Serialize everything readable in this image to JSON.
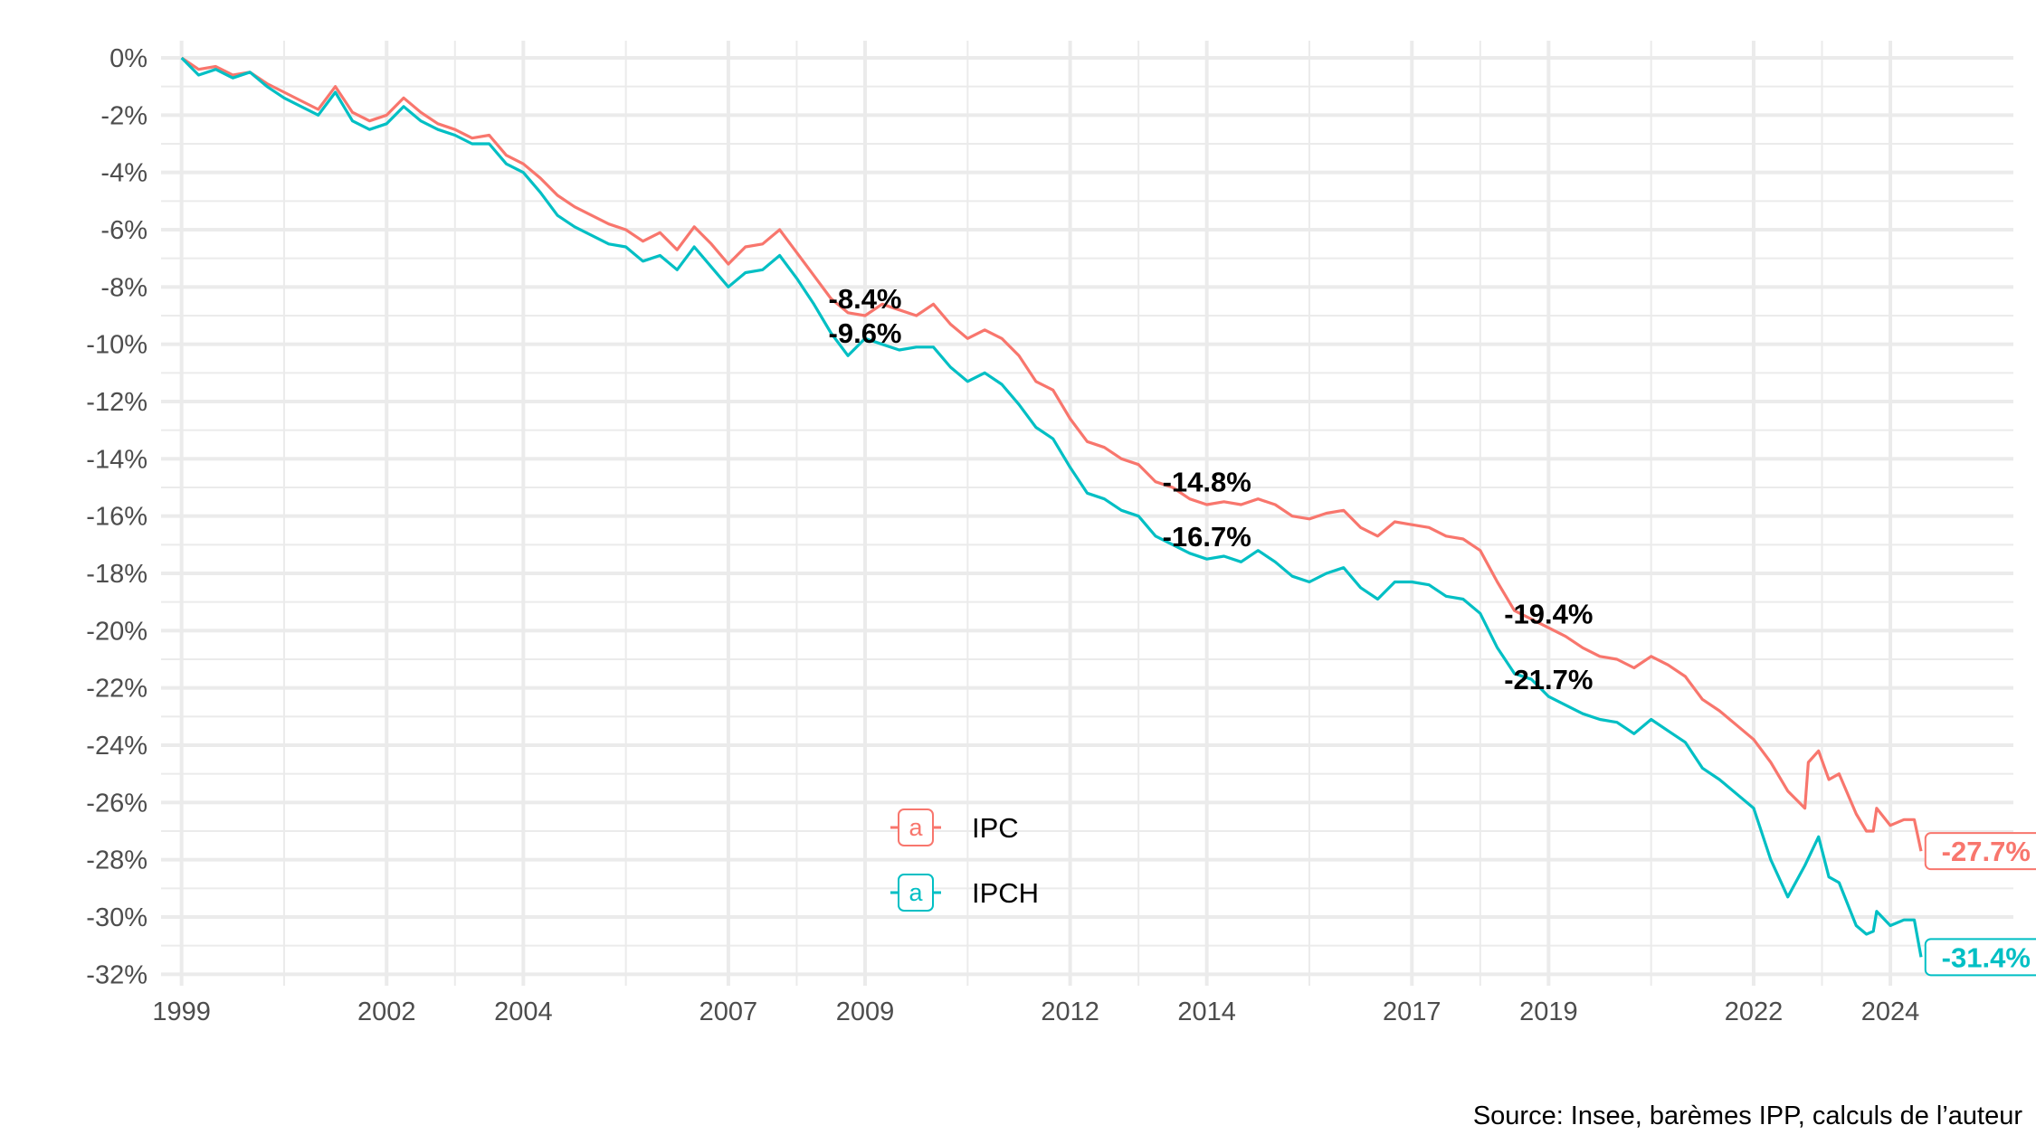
{
  "chart_data": {
    "type": "line",
    "title": "",
    "xlabel": "",
    "ylabel": "",
    "caption": "Source: Insee, barèmes IPP, calculs de l’auteur",
    "xlim": [
      1998.7,
      2025.8
    ],
    "ylim": [
      -32.4,
      0.6
    ],
    "x_ticks": [
      1999,
      2002,
      2004,
      2007,
      2009,
      2012,
      2014,
      2017,
      2019,
      2022,
      2024
    ],
    "y_ticks": [
      0,
      -2,
      -4,
      -6,
      -8,
      -10,
      -12,
      -14,
      -16,
      -18,
      -20,
      -22,
      -24,
      -26,
      -28,
      -30,
      -32
    ],
    "y_tick_labels": [
      "0%",
      "-2%",
      "-4%",
      "-6%",
      "-8%",
      "-10%",
      "-12%",
      "-14%",
      "-16%",
      "-18%",
      "-20%",
      "-22%",
      "-24%",
      "-26%",
      "-28%",
      "-30%",
      "-32%"
    ],
    "grid": true,
    "legend": {
      "position": "bottom-center",
      "key_glyph": "a"
    },
    "colors": {
      "IPC": "#f8766d",
      "IPCH": "#00bfc4"
    },
    "series": [
      {
        "name": "IPC",
        "points": [
          [
            1999.0,
            0.0
          ],
          [
            1999.25,
            -0.4
          ],
          [
            1999.5,
            -0.3
          ],
          [
            1999.75,
            -0.6
          ],
          [
            2000.0,
            -0.5
          ],
          [
            2000.25,
            -0.9
          ],
          [
            2000.5,
            -1.2
          ],
          [
            2000.75,
            -1.5
          ],
          [
            2001.0,
            -1.8
          ],
          [
            2001.25,
            -1.0
          ],
          [
            2001.5,
            -1.9
          ],
          [
            2001.75,
            -2.2
          ],
          [
            2002.0,
            -2.0
          ],
          [
            2002.25,
            -1.4
          ],
          [
            2002.5,
            -1.9
          ],
          [
            2002.75,
            -2.3
          ],
          [
            2003.0,
            -2.5
          ],
          [
            2003.25,
            -2.8
          ],
          [
            2003.5,
            -2.7
          ],
          [
            2003.75,
            -3.4
          ],
          [
            2004.0,
            -3.7
          ],
          [
            2004.25,
            -4.2
          ],
          [
            2004.5,
            -4.8
          ],
          [
            2004.75,
            -5.2
          ],
          [
            2005.0,
            -5.5
          ],
          [
            2005.25,
            -5.8
          ],
          [
            2005.5,
            -6.0
          ],
          [
            2005.75,
            -6.4
          ],
          [
            2006.0,
            -6.1
          ],
          [
            2006.25,
            -6.7
          ],
          [
            2006.5,
            -5.9
          ],
          [
            2006.75,
            -6.5
          ],
          [
            2007.0,
            -7.2
          ],
          [
            2007.25,
            -6.6
          ],
          [
            2007.5,
            -6.5
          ],
          [
            2007.75,
            -6.0
          ],
          [
            2008.0,
            -6.8
          ],
          [
            2008.25,
            -7.6
          ],
          [
            2008.5,
            -8.4
          ],
          [
            2008.75,
            -8.9
          ],
          [
            2009.0,
            -9.0
          ],
          [
            2009.25,
            -8.6
          ],
          [
            2009.5,
            -8.8
          ],
          [
            2009.75,
            -9.0
          ],
          [
            2010.0,
            -8.6
          ],
          [
            2010.25,
            -9.3
          ],
          [
            2010.5,
            -9.8
          ],
          [
            2010.75,
            -9.5
          ],
          [
            2011.0,
            -9.8
          ],
          [
            2011.25,
            -10.4
          ],
          [
            2011.5,
            -11.3
          ],
          [
            2011.75,
            -11.6
          ],
          [
            2012.0,
            -12.6
          ],
          [
            2012.25,
            -13.4
          ],
          [
            2012.5,
            -13.6
          ],
          [
            2012.75,
            -14.0
          ],
          [
            2013.0,
            -14.2
          ],
          [
            2013.25,
            -14.8
          ],
          [
            2013.5,
            -15.0
          ],
          [
            2013.75,
            -15.4
          ],
          [
            2014.0,
            -15.6
          ],
          [
            2014.25,
            -15.5
          ],
          [
            2014.5,
            -15.6
          ],
          [
            2014.75,
            -15.4
          ],
          [
            2015.0,
            -15.6
          ],
          [
            2015.25,
            -16.0
          ],
          [
            2015.5,
            -16.1
          ],
          [
            2015.75,
            -15.9
          ],
          [
            2016.0,
            -15.8
          ],
          [
            2016.25,
            -16.4
          ],
          [
            2016.5,
            -16.7
          ],
          [
            2016.75,
            -16.2
          ],
          [
            2017.0,
            -16.3
          ],
          [
            2017.25,
            -16.4
          ],
          [
            2017.5,
            -16.7
          ],
          [
            2017.75,
            -16.8
          ],
          [
            2018.0,
            -17.2
          ],
          [
            2018.25,
            -18.3
          ],
          [
            2018.5,
            -19.3
          ],
          [
            2018.75,
            -19.6
          ],
          [
            2019.0,
            -19.9
          ],
          [
            2019.25,
            -20.2
          ],
          [
            2019.5,
            -20.6
          ],
          [
            2019.75,
            -20.9
          ],
          [
            2020.0,
            -21.0
          ],
          [
            2020.25,
            -21.3
          ],
          [
            2020.5,
            -20.9
          ],
          [
            2020.75,
            -21.2
          ],
          [
            2021.0,
            -21.6
          ],
          [
            2021.25,
            -22.4
          ],
          [
            2021.5,
            -22.8
          ],
          [
            2021.75,
            -23.3
          ],
          [
            2022.0,
            -23.8
          ],
          [
            2022.25,
            -24.6
          ],
          [
            2022.5,
            -25.6
          ],
          [
            2022.75,
            -26.2
          ],
          [
            2022.8,
            -24.6
          ],
          [
            2022.95,
            -24.2
          ],
          [
            2023.1,
            -25.2
          ],
          [
            2023.25,
            -25.0
          ],
          [
            2023.5,
            -26.4
          ],
          [
            2023.65,
            -27.0
          ],
          [
            2023.75,
            -27.0
          ],
          [
            2023.8,
            -26.2
          ],
          [
            2024.0,
            -26.8
          ],
          [
            2024.2,
            -26.6
          ],
          [
            2024.35,
            -26.6
          ],
          [
            2024.45,
            -27.7
          ]
        ]
      },
      {
        "name": "IPCH",
        "points": [
          [
            1999.0,
            0.0
          ],
          [
            1999.25,
            -0.6
          ],
          [
            1999.5,
            -0.4
          ],
          [
            1999.75,
            -0.7
          ],
          [
            2000.0,
            -0.5
          ],
          [
            2000.25,
            -1.0
          ],
          [
            2000.5,
            -1.4
          ],
          [
            2000.75,
            -1.7
          ],
          [
            2001.0,
            -2.0
          ],
          [
            2001.25,
            -1.2
          ],
          [
            2001.5,
            -2.2
          ],
          [
            2001.75,
            -2.5
          ],
          [
            2002.0,
            -2.3
          ],
          [
            2002.25,
            -1.7
          ],
          [
            2002.5,
            -2.2
          ],
          [
            2002.75,
            -2.5
          ],
          [
            2003.0,
            -2.7
          ],
          [
            2003.25,
            -3.0
          ],
          [
            2003.5,
            -3.0
          ],
          [
            2003.75,
            -3.7
          ],
          [
            2004.0,
            -4.0
          ],
          [
            2004.25,
            -4.7
          ],
          [
            2004.5,
            -5.5
          ],
          [
            2004.75,
            -5.9
          ],
          [
            2005.0,
            -6.2
          ],
          [
            2005.25,
            -6.5
          ],
          [
            2005.5,
            -6.6
          ],
          [
            2005.75,
            -7.1
          ],
          [
            2006.0,
            -6.9
          ],
          [
            2006.25,
            -7.4
          ],
          [
            2006.5,
            -6.6
          ],
          [
            2006.75,
            -7.3
          ],
          [
            2007.0,
            -8.0
          ],
          [
            2007.25,
            -7.5
          ],
          [
            2007.5,
            -7.4
          ],
          [
            2007.75,
            -6.9
          ],
          [
            2008.0,
            -7.7
          ],
          [
            2008.25,
            -8.6
          ],
          [
            2008.5,
            -9.6
          ],
          [
            2008.75,
            -10.4
          ],
          [
            2009.0,
            -9.8
          ],
          [
            2009.25,
            -10.0
          ],
          [
            2009.5,
            -10.2
          ],
          [
            2009.75,
            -10.1
          ],
          [
            2010.0,
            -10.1
          ],
          [
            2010.25,
            -10.8
          ],
          [
            2010.5,
            -11.3
          ],
          [
            2010.75,
            -11.0
          ],
          [
            2011.0,
            -11.4
          ],
          [
            2011.25,
            -12.1
          ],
          [
            2011.5,
            -12.9
          ],
          [
            2011.75,
            -13.3
          ],
          [
            2012.0,
            -14.3
          ],
          [
            2012.25,
            -15.2
          ],
          [
            2012.5,
            -15.4
          ],
          [
            2012.75,
            -15.8
          ],
          [
            2013.0,
            -16.0
          ],
          [
            2013.25,
            -16.7
          ],
          [
            2013.5,
            -17.0
          ],
          [
            2013.75,
            -17.3
          ],
          [
            2014.0,
            -17.5
          ],
          [
            2014.25,
            -17.4
          ],
          [
            2014.5,
            -17.6
          ],
          [
            2014.75,
            -17.2
          ],
          [
            2015.0,
            -17.6
          ],
          [
            2015.25,
            -18.1
          ],
          [
            2015.5,
            -18.3
          ],
          [
            2015.75,
            -18.0
          ],
          [
            2016.0,
            -17.8
          ],
          [
            2016.25,
            -18.5
          ],
          [
            2016.5,
            -18.9
          ],
          [
            2016.75,
            -18.3
          ],
          [
            2017.0,
            -18.3
          ],
          [
            2017.25,
            -18.4
          ],
          [
            2017.5,
            -18.8
          ],
          [
            2017.75,
            -18.9
          ],
          [
            2018.0,
            -19.4
          ],
          [
            2018.25,
            -20.6
          ],
          [
            2018.5,
            -21.5
          ],
          [
            2018.75,
            -21.7
          ],
          [
            2019.0,
            -22.3
          ],
          [
            2019.25,
            -22.6
          ],
          [
            2019.5,
            -22.9
          ],
          [
            2019.75,
            -23.1
          ],
          [
            2020.0,
            -23.2
          ],
          [
            2020.25,
            -23.6
          ],
          [
            2020.5,
            -23.1
          ],
          [
            2020.75,
            -23.5
          ],
          [
            2021.0,
            -23.9
          ],
          [
            2021.25,
            -24.8
          ],
          [
            2021.5,
            -25.2
          ],
          [
            2021.75,
            -25.7
          ],
          [
            2022.0,
            -26.2
          ],
          [
            2022.25,
            -28.0
          ],
          [
            2022.5,
            -29.3
          ],
          [
            2022.75,
            -28.2
          ],
          [
            2022.95,
            -27.2
          ],
          [
            2023.1,
            -28.6
          ],
          [
            2023.25,
            -28.8
          ],
          [
            2023.5,
            -30.3
          ],
          [
            2023.65,
            -30.6
          ],
          [
            2023.75,
            -30.5
          ],
          [
            2023.8,
            -29.8
          ],
          [
            2024.0,
            -30.3
          ],
          [
            2024.2,
            -30.1
          ],
          [
            2024.35,
            -30.1
          ],
          [
            2024.45,
            -31.4
          ]
        ]
      }
    ],
    "annotations": [
      {
        "label": "-8.4%",
        "x": 2009.0,
        "y": -8.4
      },
      {
        "label": "-9.6%",
        "x": 2009.0,
        "y": -9.6
      },
      {
        "label": "-14.8%",
        "x": 2014.0,
        "y": -14.8
      },
      {
        "label": "-16.7%",
        "x": 2014.0,
        "y": -16.7
      },
      {
        "label": "-19.4%",
        "x": 2019.0,
        "y": -19.4
      },
      {
        "label": "-21.7%",
        "x": 2019.0,
        "y": -21.7
      }
    ],
    "end_labels": [
      {
        "series": "IPC",
        "label": "-27.7%",
        "x": 2025.4,
        "y": -27.7
      },
      {
        "series": "IPCH",
        "label": "-31.4%",
        "x": 2025.4,
        "y": -31.4
      }
    ]
  }
}
